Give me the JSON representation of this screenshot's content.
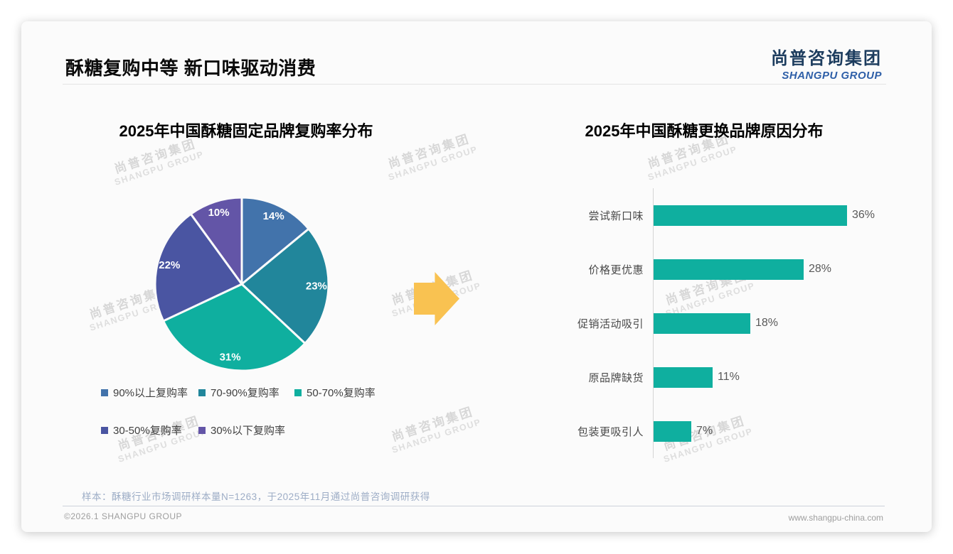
{
  "page": {
    "title": "酥糖复购中等 新口味驱动消费",
    "logo_cn": "尚普咨询集团",
    "logo_en": "SHANGPU GROUP",
    "sample_note": "样本：酥糖行业市场调研样本量N=1263，于2025年11月通过尚普咨询调研获得",
    "footer_left": "©2026.1 SHANGPU GROUP",
    "footer_right": "www.shangpu-china.com",
    "watermark_cn": "尚普咨询集团",
    "watermark_en": "SHANGPU GROUP"
  },
  "colors": {
    "arrow": "#f9c251",
    "bar": "#0faf9f",
    "logo_navy": "#1c3c5e",
    "logo_blue": "#2e5fa8"
  },
  "chart_data": [
    {
      "type": "pie",
      "title": "2025年中国酥糖固定品牌复购率分布",
      "categories": [
        "90%以上复购率",
        "70-90%复购率",
        "50-70%复购率",
        "30-50%复购率",
        "30%以下复购率"
      ],
      "values": [
        14,
        23,
        31,
        22,
        10
      ],
      "unit": "%",
      "slice_colors": [
        "#4273ab",
        "#21869b",
        "#0faf9f",
        "#4a55a2",
        "#6355a7"
      ],
      "start_angle": "top",
      "direction": "clockwise",
      "data_labels": "inside",
      "legend_position": "bottom"
    },
    {
      "type": "bar",
      "title": "2025年中国酥糖更换品牌原因分布",
      "orientation": "horizontal",
      "categories": [
        "尝试新口味",
        "价格更优惠",
        "促销活动吸引",
        "原品牌缺货",
        "包装更吸引人"
      ],
      "values": [
        36,
        28,
        18,
        11,
        7
      ],
      "unit": "%",
      "bar_color": "#0faf9f",
      "xlim": [
        0,
        40
      ],
      "value_labels": "outside-end",
      "grid": false
    }
  ]
}
